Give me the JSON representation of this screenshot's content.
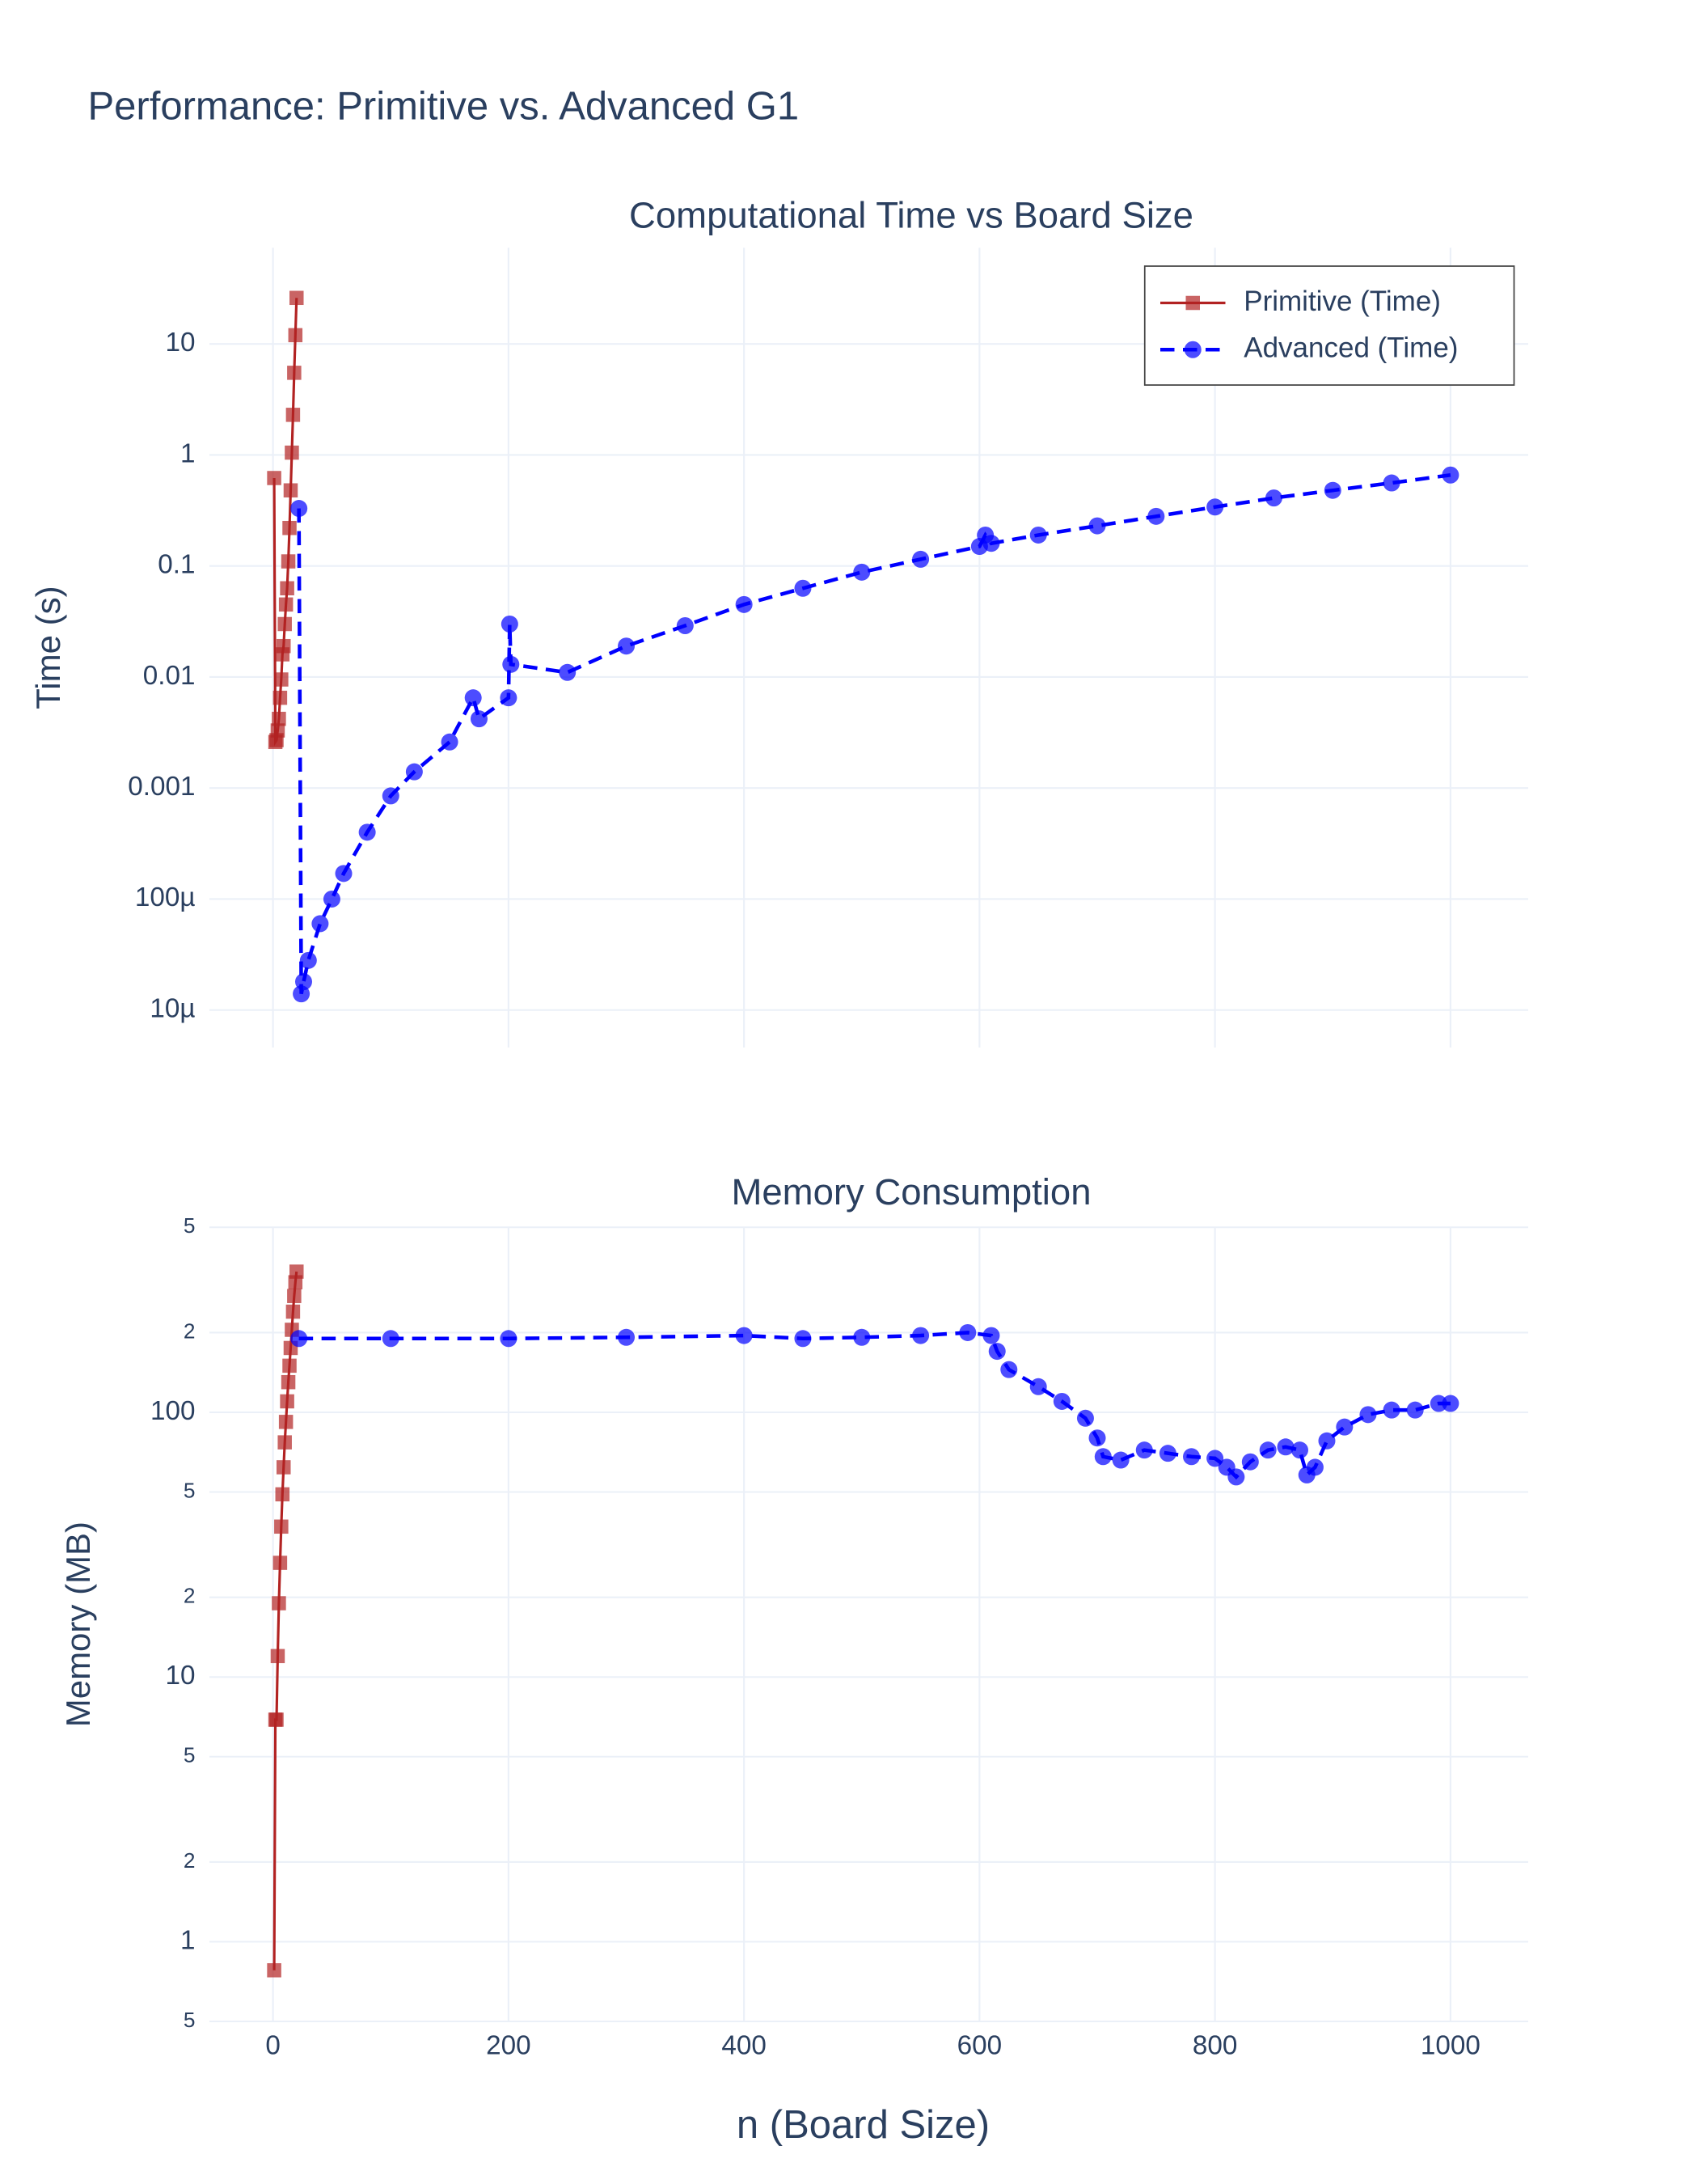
{
  "title": "Performance: Primitive vs. Advanced G1",
  "xlabel": "n (Board Size)",
  "chart_data": [
    {
      "type": "line",
      "title": "Computational Time vs Board Size",
      "ylabel": "Time (s)",
      "log_y": true,
      "grid": true,
      "legend": "top-right",
      "xlim": [
        -54,
        1066
      ],
      "xticks": [
        0,
        200,
        400,
        600,
        800,
        1000
      ],
      "ylim": [
        4.6e-06,
        73.6
      ],
      "yticks": [
        {
          "value": 1e-05,
          "label": "10µ"
        },
        {
          "value": 0.0001,
          "label": "100µ"
        },
        0.001,
        0.01,
        0.1,
        1,
        10
      ],
      "series": [
        {
          "name": "Primitive (Time)",
          "color": "#b22222",
          "dash": "solid",
          "marker": "square",
          "x": [
            1,
            2,
            3,
            4,
            5,
            6,
            7,
            8,
            9,
            10,
            11,
            12,
            13,
            14,
            15,
            16,
            17,
            18,
            19,
            20
          ],
          "values": [
            0.62,
            0.0026,
            0.0027,
            0.0033,
            0.0042,
            0.0065,
            0.0095,
            0.016,
            0.019,
            0.03,
            0.045,
            0.063,
            0.11,
            0.22,
            0.48,
            1.05,
            2.3,
            5.5,
            12,
            26
          ]
        },
        {
          "name": "Advanced (Time)",
          "color": "#0000ff",
          "dash": "dash",
          "marker": "circle",
          "x": [
            22,
            24,
            26,
            30,
            40,
            50,
            60,
            80,
            100,
            120,
            150,
            170,
            175,
            200,
            201,
            202,
            250,
            300,
            350,
            400,
            450,
            500,
            550,
            600,
            605,
            610,
            650,
            700,
            750,
            800,
            850,
            900,
            950,
            1000
          ],
          "values": [
            0.33,
            1.4e-05,
            1.8e-05,
            2.8e-05,
            6e-05,
            0.0001,
            0.00017,
            0.0004,
            0.00085,
            0.0014,
            0.0026,
            0.0065,
            0.0042,
            0.0065,
            0.03,
            0.013,
            0.011,
            0.019,
            0.029,
            0.045,
            0.063,
            0.088,
            0.115,
            0.15,
            0.19,
            0.16,
            0.19,
            0.23,
            0.28,
            0.34,
            0.41,
            0.48,
            0.56,
            0.66
          ]
        }
      ]
    },
    {
      "type": "line",
      "title": "Memory Consumption",
      "ylabel": "Memory (MB)",
      "log_y": true,
      "grid": true,
      "xlim": [
        -54,
        1066
      ],
      "xticks": [
        0,
        200,
        400,
        600,
        800,
        1000
      ],
      "ylim": [
        0.5,
        500
      ],
      "yticks": [
        {
          "value": 0.5,
          "label": "5"
        },
        1,
        2,
        5,
        10,
        {
          "value": 20,
          "label": "2"
        },
        {
          "value": 50,
          "label": "5"
        },
        100,
        {
          "value": 200,
          "label": "2"
        },
        {
          "value": 500,
          "label": "5"
        }
      ],
      "series": [
        {
          "color": "#b22222",
          "dash": "solid",
          "marker": "square",
          "x": [
            1,
            2,
            3,
            4,
            5,
            6,
            7,
            8,
            9,
            10,
            11,
            12,
            13,
            14,
            15,
            16,
            17,
            18,
            19,
            20
          ],
          "values": [
            0.78,
            6.9,
            6.9,
            12,
            19,
            27,
            37,
            49,
            62,
            77,
            92,
            110,
            130,
            150,
            175,
            205,
            240,
            275,
            310,
            340
          ]
        },
        {
          "color": "#0000ff",
          "dash": "dash",
          "marker": "circle",
          "x": [
            22,
            100,
            200,
            300,
            400,
            450,
            500,
            550,
            590,
            610,
            615,
            625,
            650,
            670,
            690,
            700,
            705,
            720,
            740,
            760,
            780,
            800,
            810,
            818,
            830,
            845,
            860,
            872,
            878,
            885,
            895,
            910,
            930,
            950,
            970,
            990,
            1000
          ],
          "values": [
            190,
            190,
            190,
            192,
            195,
            190,
            192,
            195,
            200,
            195,
            170,
            145,
            125,
            110,
            95,
            80,
            68,
            66,
            72,
            70,
            68,
            67,
            62,
            57,
            65,
            72,
            74,
            72,
            58,
            62,
            78,
            88,
            98,
            102,
            102,
            108,
            108
          ]
        }
      ]
    }
  ]
}
